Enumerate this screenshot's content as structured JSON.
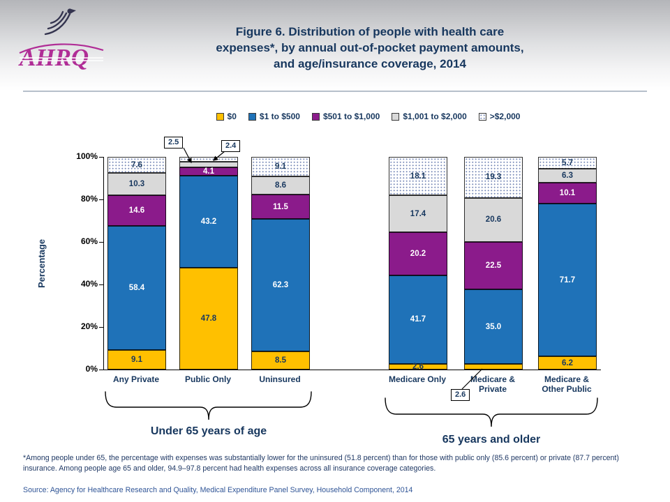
{
  "header": {
    "title_lines": [
      "Figure 6. Distribution of people with health care",
      "expenses*, by annual out-of-pocket payment amounts,",
      "and age/insurance coverage, 2014"
    ],
    "ahrq_logo_text": "AHRQ"
  },
  "chart_data": {
    "type": "bar",
    "stacked": true,
    "title": "Figure 6. Distribution of people with health care expenses*, by annual out-of-pocket payment amounts, and age/insurance coverage, 2014",
    "ylabel": "Percentage",
    "xlabel": "",
    "ylim": [
      0,
      100
    ],
    "yticks": [
      "0%",
      "20%",
      "40%",
      "60%",
      "80%",
      "100%"
    ],
    "legend_position": "top",
    "grid": false,
    "categories": [
      "Any Private",
      "Public Only",
      "Uninsured",
      "Medicare Only",
      "Medicare &\nPrivate",
      "Medicare &\nOther Public"
    ],
    "series": [
      {
        "name": "$0",
        "color": "#FFC000",
        "label_color": "#17375E",
        "values": [
          9.1,
          47.8,
          8.5,
          2.6,
          2.6,
          6.2
        ]
      },
      {
        "name": "$1 to $500",
        "color": "#1F72B8",
        "label_color": "#FFFFFF",
        "values": [
          58.4,
          43.2,
          62.3,
          41.7,
          35.0,
          71.7
        ]
      },
      {
        "name": "$501 to $1,000",
        "color": "#8B1B8B",
        "label_color": "#FFFFFF",
        "values": [
          14.6,
          4.1,
          11.5,
          20.2,
          22.5,
          10.1
        ]
      },
      {
        "name": "$1,001 to $2,000",
        "color": "#D9D9D9",
        "label_color": "#17375E",
        "values": [
          10.3,
          2.5,
          8.6,
          17.4,
          20.6,
          6.3
        ]
      },
      {
        "name": ">$2,000",
        "color": "#FFFFFF",
        "pattern": "dotted",
        "pattern_color": "#7E8FBB",
        "label_color": "#17375E",
        "values": [
          7.6,
          2.4,
          9.1,
          18.1,
          19.3,
          5.7
        ]
      }
    ],
    "callouts": [
      {
        "value": "2.5",
        "category": "Public Only",
        "series": "$1,001 to $2,000"
      },
      {
        "value": "2.4",
        "category": "Public Only",
        "series": ">$2,000"
      },
      {
        "value": "2.6",
        "category": "Medicare & Private",
        "series": "$0"
      }
    ],
    "groups": [
      {
        "label": "Under 65 years of age",
        "categories": [
          "Any Private",
          "Public Only",
          "Uninsured"
        ]
      },
      {
        "label": "65 years and older",
        "categories": [
          "Medicare Only",
          "Medicare & Private",
          "Medicare & Other Public"
        ]
      }
    ]
  },
  "footnote": "*Among people under 65, the percentage with expenses was substantially lower for the uninsured (51.8 percent) than for those with public only (85.6 percent) or private (87.7 percent)  insurance.  Among people age 65 and older, 94.9–97.8 percent had health expenses across all insurance coverage categories.",
  "source": "Source: Agency for Healthcare Research and Quality, Medical Expenditure Panel Survey,  Household Component, 2014"
}
